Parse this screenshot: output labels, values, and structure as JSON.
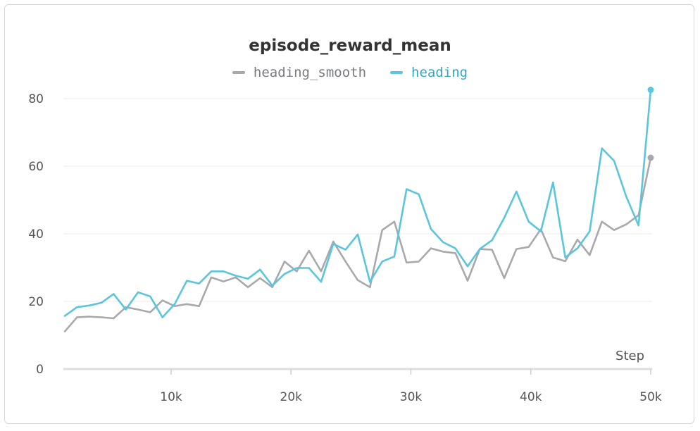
{
  "chart_data": {
    "type": "line",
    "title": "episode_reward_mean",
    "xlabel": "Step",
    "ylabel": "",
    "xlim": [
      0,
      50000
    ],
    "ylim": [
      0,
      85
    ],
    "x_ticks": [
      {
        "value": 10000,
        "label": "10k"
      },
      {
        "value": 20000,
        "label": "20k"
      },
      {
        "value": 30000,
        "label": "30k"
      },
      {
        "value": 40000,
        "label": "40k"
      },
      {
        "value": 50000,
        "label": "50k"
      }
    ],
    "y_ticks": [
      {
        "value": 0,
        "label": "0"
      },
      {
        "value": 20,
        "label": "20"
      },
      {
        "value": 40,
        "label": "40"
      },
      {
        "value": 60,
        "label": "60"
      },
      {
        "value": 80,
        "label": "80"
      }
    ],
    "grid": true,
    "legend_position": "top-center",
    "series": [
      {
        "name": "heading_smooth",
        "color": "#a7a9ad",
        "x": [
          0,
          1000,
          2000,
          3000,
          4000,
          5000,
          6000,
          7000,
          8000,
          9000,
          10000,
          11000,
          12000,
          13000,
          14000,
          15000,
          16000,
          17000,
          18000,
          19000,
          20000,
          21000,
          22000,
          23000,
          24000,
          25000,
          26000,
          27000,
          28000,
          29000,
          30000,
          31000,
          32000,
          33000,
          34000,
          35000,
          36000,
          37000,
          38000,
          39000,
          40000,
          41000,
          42000,
          43000,
          44000,
          45000,
          46000,
          47000,
          48000,
          49000,
          50000
        ],
        "values": [
          11.1,
          15.3,
          15.5,
          15.3,
          15.0,
          18.3,
          17.6,
          16.8,
          20.3,
          18.6,
          19.2,
          18.6,
          27.1,
          25.9,
          27.1,
          24.2,
          26.9,
          24.2,
          31.8,
          28.9,
          35.0,
          28.9,
          37.7,
          31.8,
          26.3,
          24.2,
          41.1,
          43.6,
          31.5,
          31.8,
          35.7,
          34.7,
          34.3,
          26.1,
          35.5,
          35.3,
          26.9,
          35.5,
          36.1,
          41.4,
          33.0,
          31.9,
          38.3,
          33.7,
          43.6,
          41.1,
          42.8,
          45.5,
          62.5,
          null,
          null
        ]
      },
      {
        "name": "heading",
        "color": "#5bc5db",
        "x": [
          0,
          1000,
          2000,
          3000,
          4000,
          5000,
          6000,
          7000,
          8000,
          9000,
          10000,
          11000,
          12000,
          13000,
          14000,
          15000,
          16000,
          17000,
          18000,
          19000,
          20000,
          21000,
          22000,
          23000,
          24000,
          25000,
          26000,
          27000,
          28000,
          29000,
          30000,
          31000,
          32000,
          33000,
          34000,
          35000,
          36000,
          37000,
          38000,
          39000,
          40000,
          41000,
          42000,
          43000,
          44000,
          45000,
          46000,
          47000,
          48000,
          49000,
          50000
        ],
        "values": [
          15.7,
          18.3,
          18.8,
          19.6,
          22.2,
          17.6,
          22.7,
          21.5,
          15.3,
          19.2,
          26.1,
          25.3,
          28.9,
          28.9,
          27.6,
          26.7,
          29.4,
          24.7,
          28.1,
          29.9,
          29.9,
          25.8,
          37.0,
          35.3,
          39.8,
          25.8,
          31.8,
          33.3,
          53.2,
          51.7,
          41.4,
          37.5,
          35.7,
          30.4,
          35.5,
          38.1,
          44.7,
          52.5,
          43.6,
          40.7,
          55.2,
          33.0,
          35.7,
          40.7,
          65.3,
          61.6,
          51.0,
          42.5,
          82.6,
          null,
          null
        ]
      }
    ]
  }
}
